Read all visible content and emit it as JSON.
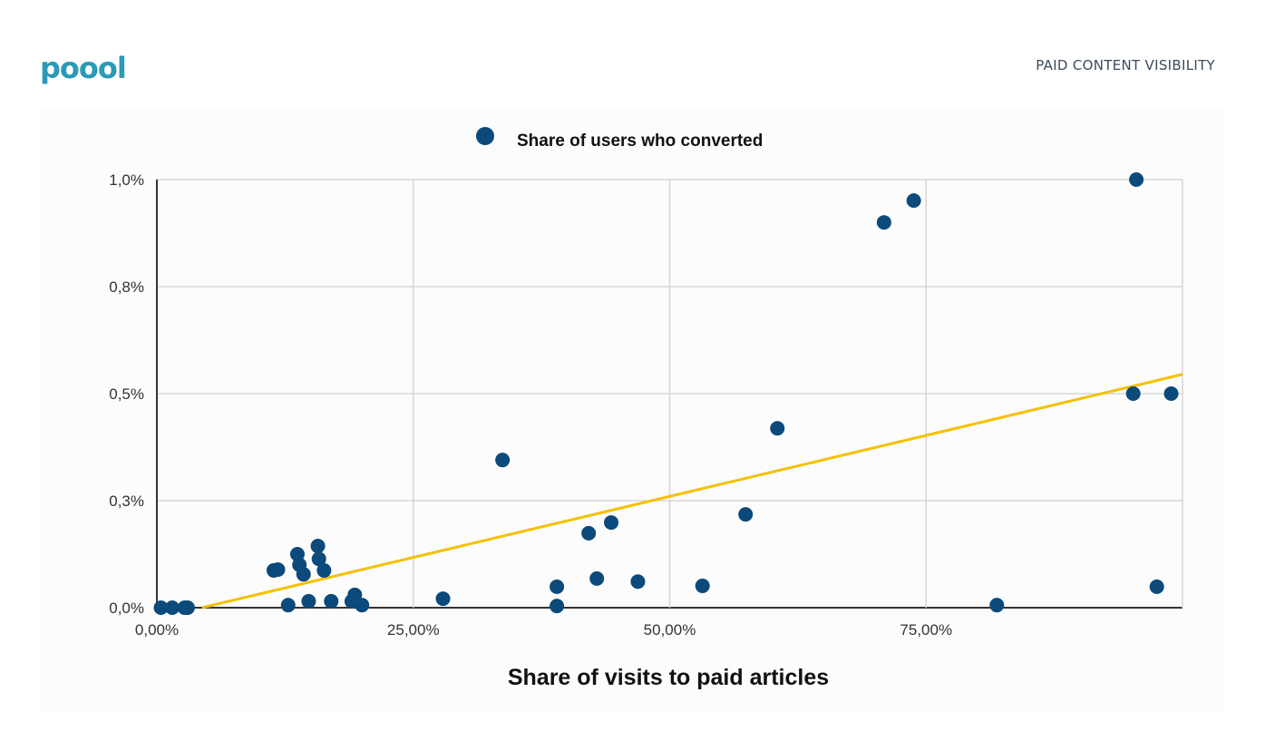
{
  "header": {
    "logo": "poool",
    "section_title": "PAID CONTENT VISIBILITY"
  },
  "colors": {
    "points": "#0b4a7a",
    "trend": "#f5c000",
    "grid": "#d6d6d6",
    "logo": "#2a9ab8"
  },
  "chart_data": {
    "type": "scatter",
    "title": "",
    "legend": {
      "label": "Share of users who converted",
      "placement": "top-center"
    },
    "xlabel": "Share of visits to paid articles",
    "ylabel": "",
    "xlim": [
      0,
      100
    ],
    "ylim": [
      0,
      1.0
    ],
    "x_ticks": [
      {
        "value": 0,
        "label": "0,00%"
      },
      {
        "value": 25,
        "label": "25,00%"
      },
      {
        "value": 50,
        "label": "50,00%"
      },
      {
        "value": 75,
        "label": "75,00%"
      }
    ],
    "y_ticks": [
      {
        "value": 0,
        "label": "0,0%"
      },
      {
        "value": 0.25,
        "label": "0,3%"
      },
      {
        "value": 0.5,
        "label": "0,5%"
      },
      {
        "value": 0.75,
        "label": "0,8%"
      },
      {
        "value": 1.0,
        "label": "1,0%"
      }
    ],
    "grid": true,
    "series": [
      {
        "name": "Share of users who converted",
        "points": [
          [
            0.4,
            0
          ],
          [
            1.5,
            0
          ],
          [
            2.7,
            0
          ],
          [
            3.0,
            0
          ],
          [
            11.4,
            0.087
          ],
          [
            11.8,
            0.089
          ],
          [
            12.8,
            0.006
          ],
          [
            13.7,
            0.125
          ],
          [
            13.9,
            0.1
          ],
          [
            14.3,
            0.078
          ],
          [
            14.8,
            0.015
          ],
          [
            15.7,
            0.144
          ],
          [
            15.8,
            0.114
          ],
          [
            16.3,
            0.087
          ],
          [
            17.0,
            0.015
          ],
          [
            19.0,
            0.015
          ],
          [
            19.3,
            0.03
          ],
          [
            20.0,
            0.006
          ],
          [
            27.9,
            0.021
          ],
          [
            33.7,
            0.345
          ],
          [
            39.0,
            0.049
          ],
          [
            39.0,
            0.004
          ],
          [
            42.1,
            0.174
          ],
          [
            42.9,
            0.068
          ],
          [
            44.3,
            0.199
          ],
          [
            46.9,
            0.061
          ],
          [
            53.2,
            0.051
          ],
          [
            57.4,
            0.218
          ],
          [
            60.5,
            0.419
          ],
          [
            70.9,
            0.9
          ],
          [
            73.8,
            0.951
          ],
          [
            81.9,
            0.006
          ],
          [
            95.2,
            0.5
          ],
          [
            95.5,
            1.0
          ],
          [
            97.5,
            0.049
          ],
          [
            98.9,
            0.5
          ]
        ]
      }
    ],
    "trendline": {
      "type": "linear",
      "from": [
        4.4,
        0
      ],
      "to": [
        100,
        0.545
      ]
    }
  }
}
